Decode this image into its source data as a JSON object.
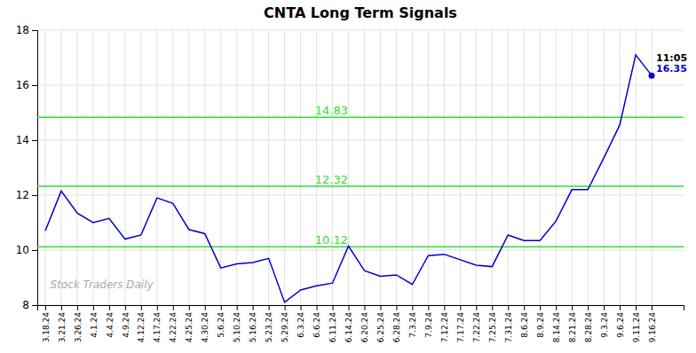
{
  "chart_data": {
    "type": "line",
    "title": "CNTA Long Term Signals",
    "color": "#0000cc",
    "grid": true,
    "categories": [
      "3.18.24",
      "3.21.24",
      "3.26.24",
      "4.1.24",
      "4.4.24",
      "4.9.24",
      "4.12.24",
      "4.17.24",
      "4.22.24",
      "4.25.24",
      "4.30.24",
      "5.6.24",
      "5.10.24",
      "5.16.24",
      "5.23.24",
      "5.29.24",
      "6.3.24",
      "6.6.24",
      "6.11.24",
      "6.14.24",
      "6.20.24",
      "6.25.24",
      "6.28.24",
      "7.3.24",
      "7.9.24",
      "7.12.24",
      "7.17.24",
      "7.22.24",
      "7.25.24",
      "7.31.24",
      "8.6.24",
      "8.9.24",
      "8.14.24",
      "8.21.24",
      "8.28.24",
      "9.3.24",
      "9.6.24",
      "9.11.24",
      "9.16.24"
    ],
    "values": [
      10.7,
      12.15,
      11.35,
      11.0,
      11.15,
      10.4,
      10.55,
      11.9,
      11.7,
      10.75,
      10.6,
      9.35,
      9.5,
      9.55,
      9.7,
      8.1,
      8.55,
      8.7,
      8.8,
      10.15,
      9.25,
      9.05,
      9.1,
      8.75,
      9.8,
      9.85,
      9.65,
      9.45,
      9.4,
      10.55,
      10.35,
      10.35,
      11.05,
      12.2,
      12.2,
      13.35,
      14.55,
      17.1,
      16.35
    ],
    "ylim": [
      8,
      18
    ],
    "yticks": [
      8,
      10,
      12,
      14,
      16,
      18
    ],
    "annotations": [
      {
        "type": "hline",
        "y": 14.83,
        "label": "14.83",
        "color": "#33dd33"
      },
      {
        "type": "hline",
        "y": 12.32,
        "label": "12.32",
        "color": "#33dd33"
      },
      {
        "type": "hline",
        "y": 10.12,
        "label": "10.12",
        "color": "#33dd33"
      },
      {
        "type": "point",
        "x": "9.16.24",
        "y": 16.35,
        "labels": [
          "11:05",
          "16.35"
        ]
      },
      {
        "type": "text",
        "text": "Stock Traders Daily",
        "color": "#aaaaaa"
      }
    ]
  }
}
